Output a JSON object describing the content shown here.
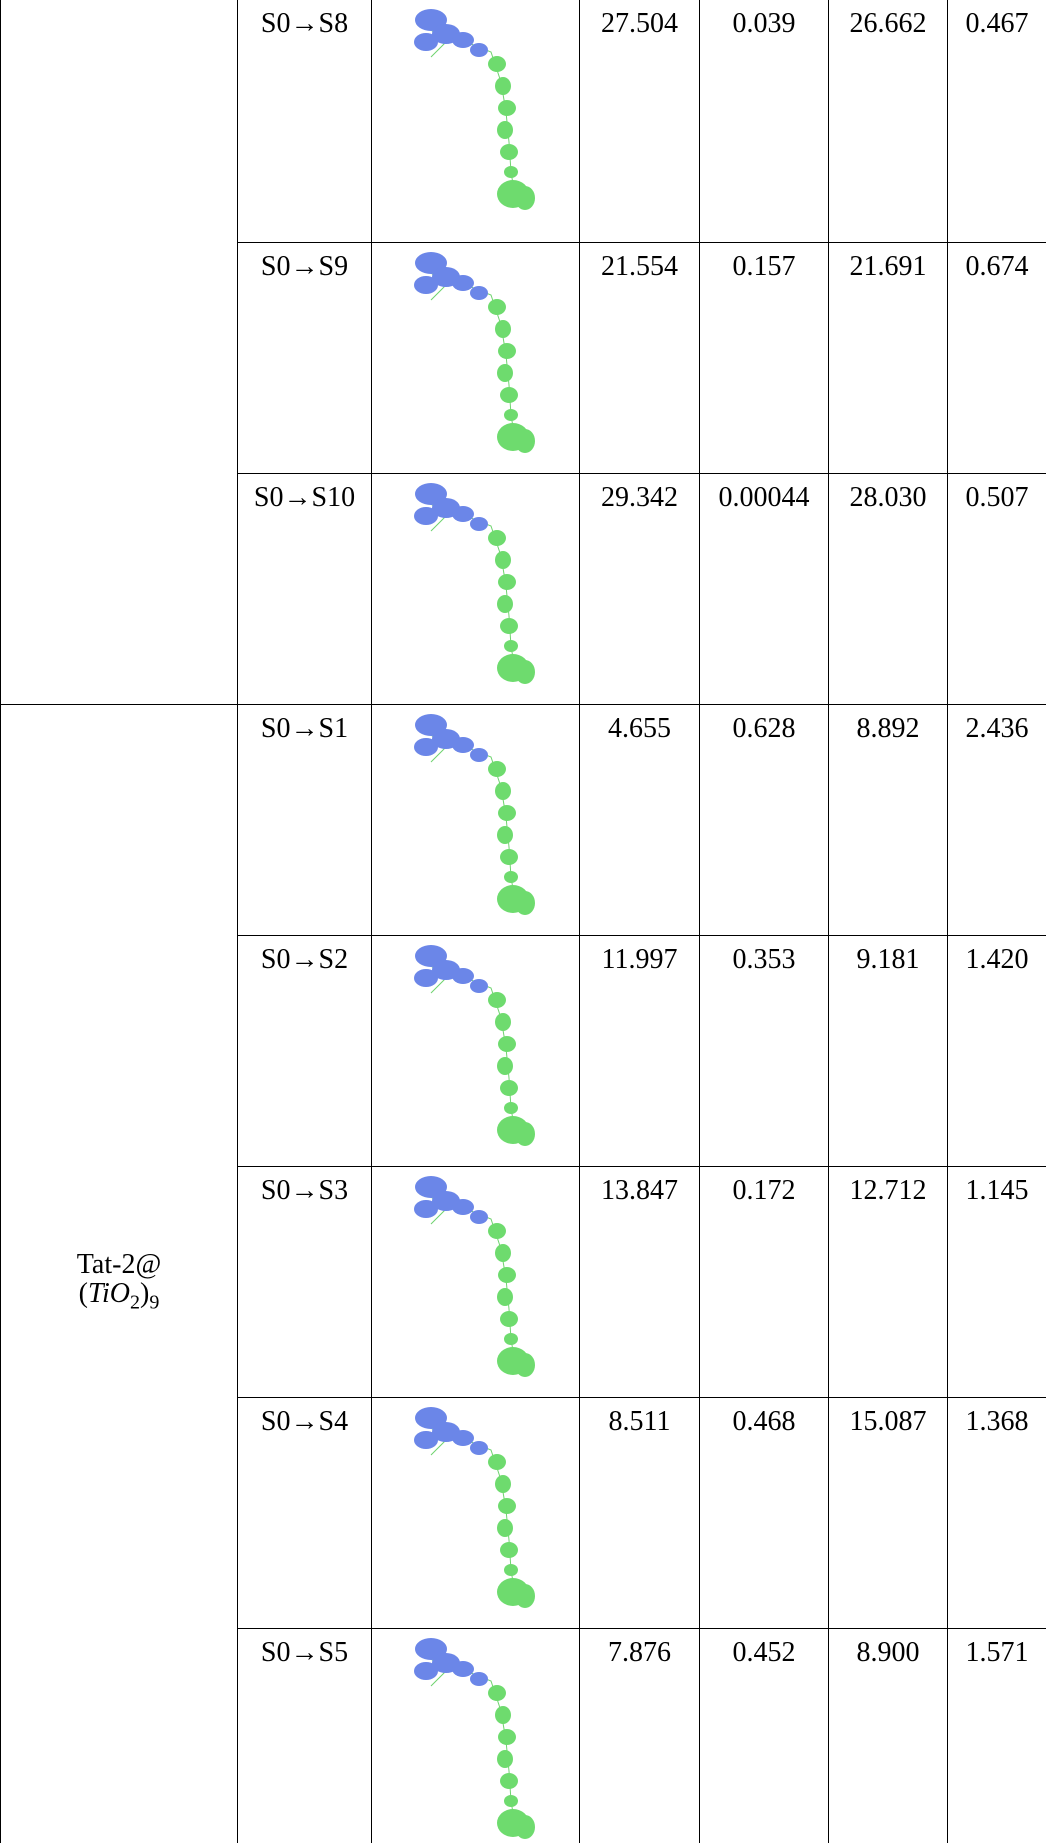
{
  "table": {
    "groups": [
      {
        "rows": [
          {
            "transition": "S0→S8",
            "values": [
              "27.504",
              "0.039",
              "26.662",
              "0.467"
            ]
          },
          {
            "transition": "S0→S9",
            "values": [
              "21.554",
              "0.157",
              "21.691",
              "0.674"
            ]
          },
          {
            "transition": "S0→S10",
            "values": [
              "29.342",
              "0.00044",
              "28.030",
              "0.507"
            ]
          }
        ]
      },
      {
        "label": {
          "line1": "Tat-2@",
          "line2": [
            "(",
            "TiO",
            "2",
            ")",
            "9"
          ]
        },
        "rows": [
          {
            "transition": "S0→S1",
            "values": [
              "4.655",
              "0.628",
              "8.892",
              "2.436"
            ]
          },
          {
            "transition": "S0→S2",
            "values": [
              "11.997",
              "0.353",
              "9.181",
              "1.420"
            ]
          },
          {
            "transition": "S0→S3",
            "values": [
              "13.847",
              "0.172",
              "12.712",
              "1.145"
            ]
          },
          {
            "transition": "S0→S4",
            "values": [
              "8.511",
              "0.468",
              "15.087",
              "1.368"
            ]
          },
          {
            "transition": "S0→S5",
            "values": [
              "7.876",
              "0.452",
              "8.900",
              "1.571"
            ]
          }
        ]
      }
    ]
  }
}
